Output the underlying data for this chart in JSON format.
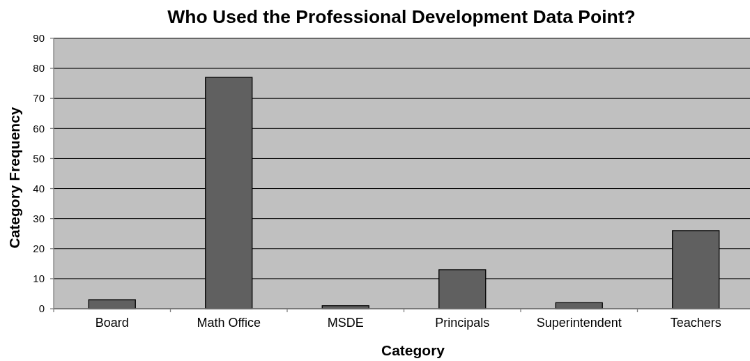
{
  "chart_data": {
    "type": "bar",
    "title": "Who Used the Professional Development Data Point?",
    "xlabel": "Category",
    "ylabel": "Category Frequency",
    "categories": [
      "Board",
      "Math Office",
      "MSDE",
      "Principals",
      "Superintendent",
      "Teachers"
    ],
    "values": [
      3,
      77,
      1,
      13,
      2,
      26
    ],
    "color": "#606060",
    "ylim": [
      0,
      90
    ],
    "yticks": [
      0,
      10,
      20,
      30,
      40,
      50,
      60,
      70,
      80,
      90
    ],
    "grid": "y"
  }
}
